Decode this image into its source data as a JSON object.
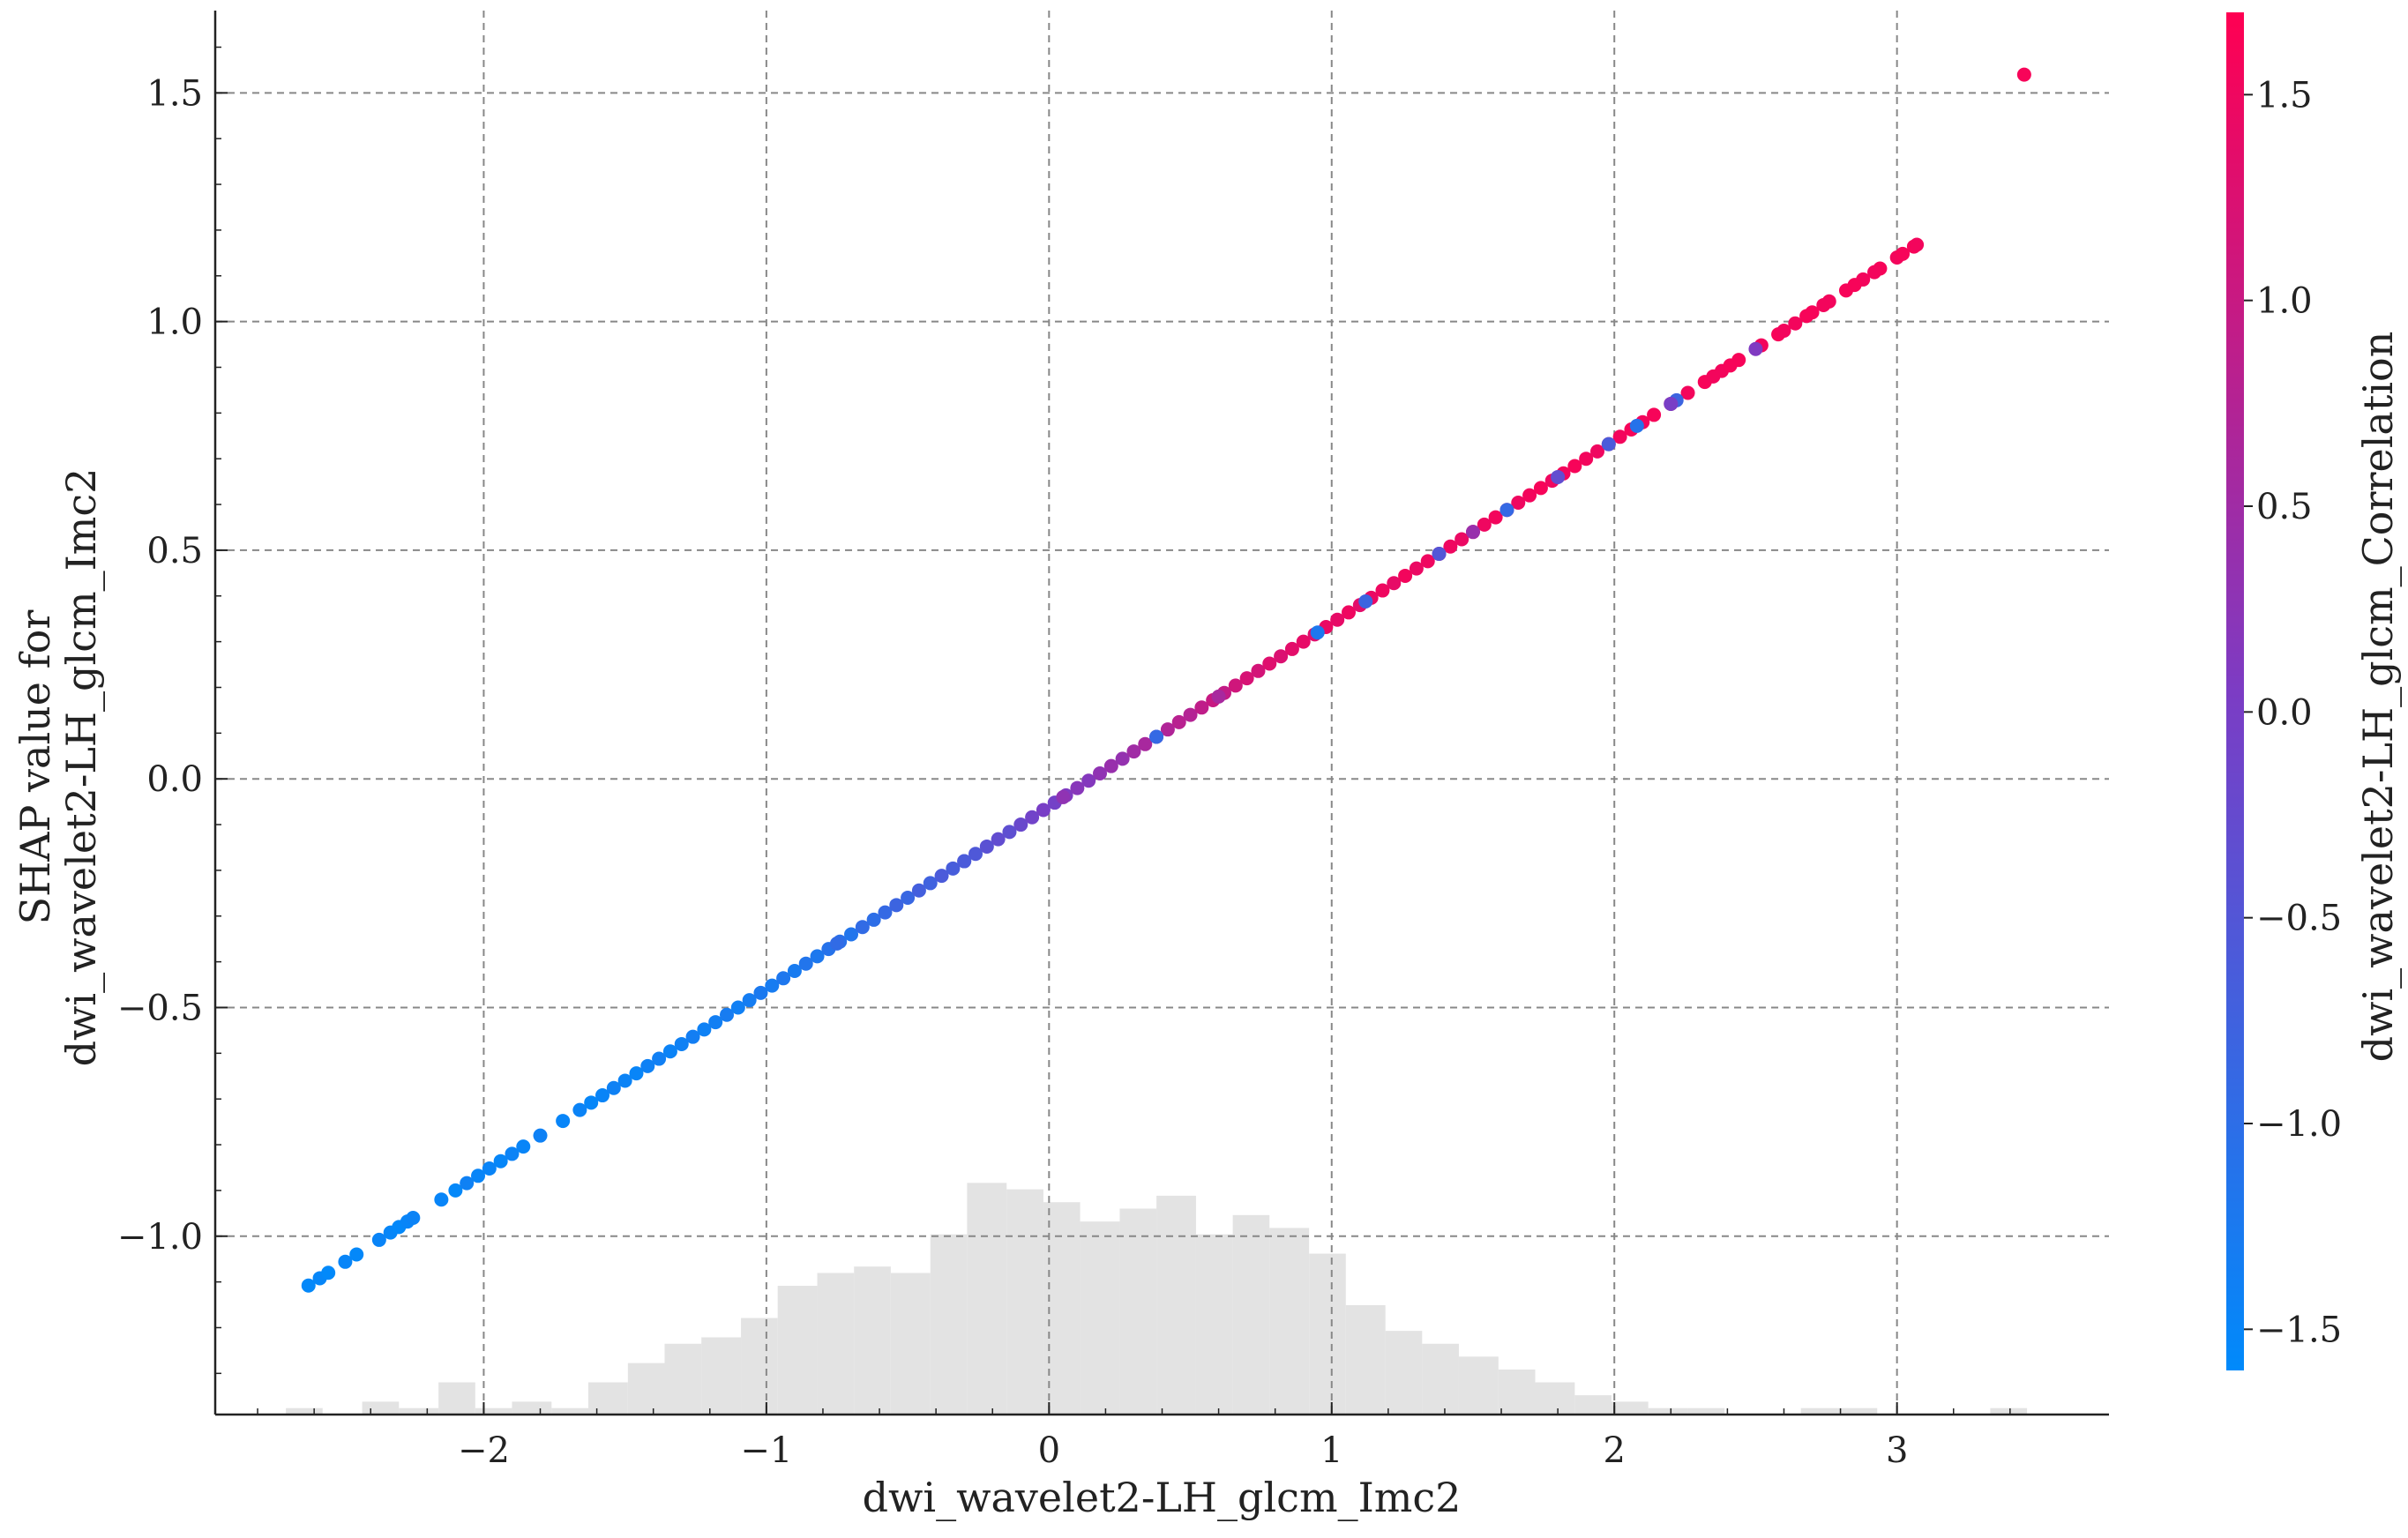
{
  "chart_data": {
    "type": "scatter",
    "title": "",
    "xlabel": "dwi_wavelet2-LH_glcm_Imc2",
    "ylabel_lines": [
      "SHAP value for",
      "dwi_wavelet2-LH_glcm_Imc2"
    ],
    "colorbar_label": "dwi_wavelet2-LH_glcm_Correlation",
    "xlim": [
      -2.95,
      3.75
    ],
    "ylim": [
      -1.39,
      1.68
    ],
    "xticks": [
      -2,
      -1,
      0,
      1,
      2,
      3
    ],
    "xtick_labels": [
      "−2",
      "−1",
      "0",
      "1",
      "2",
      "3"
    ],
    "yticks": [
      -1.0,
      -0.5,
      0.0,
      0.5,
      1.0,
      1.5
    ],
    "ytick_labels": [
      "−1.0",
      "−0.5",
      "0.0",
      "0.5",
      "1.0",
      "1.5"
    ],
    "colorbar_ticks": [
      -1.5,
      -1.0,
      -0.5,
      0.0,
      0.5,
      1.0,
      1.5
    ],
    "colorbar_tick_labels": [
      "−1.5",
      "−1.0",
      "−0.5",
      "0.0",
      "0.5",
      "1.0",
      "1.5"
    ],
    "colorbar_range": [
      -1.6,
      1.7
    ],
    "grid": true,
    "colors": {
      "low": "#008afb",
      "mid": "#7c3cc4",
      "high": "#ff0052",
      "histogram": "#e3e3e3",
      "grid": "#888888",
      "axis": "#222222"
    },
    "trend": {
      "slope": 0.4,
      "intercept": -0.06
    },
    "points": [
      [
        -2.62,
        -1.26,
        -1.55
      ],
      [
        -2.58,
        -1.24,
        -1.52
      ],
      [
        -2.55,
        -1.23,
        -1.58
      ],
      [
        -2.49,
        -1.21,
        -1.5
      ],
      [
        -2.45,
        -1.19,
        -1.55
      ],
      [
        -2.37,
        -1.16,
        -1.48
      ],
      [
        -2.33,
        -1.14,
        -1.52
      ],
      [
        -2.3,
        -1.13,
        -1.56
      ],
      [
        -2.27,
        -1.12,
        -1.5
      ],
      [
        -2.25,
        -1.11,
        -1.45
      ],
      [
        -2.15,
        -1.07,
        -1.5
      ],
      [
        -2.1,
        -1.05,
        -1.55
      ],
      [
        -2.06,
        -1.03,
        -1.4
      ],
      [
        -2.02,
        -1.02,
        -1.5
      ],
      [
        -1.98,
        -1.0,
        -1.48
      ],
      [
        -1.94,
        -0.99,
        -1.52
      ],
      [
        -1.9,
        -0.97,
        -1.45
      ],
      [
        -1.86,
        -0.95,
        -1.5
      ],
      [
        -1.8,
        -0.93,
        -1.42
      ],
      [
        -1.72,
        -0.9,
        -1.5
      ],
      [
        -1.66,
        -0.87,
        -1.45
      ],
      [
        -1.62,
        -0.86,
        -1.52
      ],
      [
        -1.58,
        -0.84,
        -1.48
      ],
      [
        -1.54,
        -0.83,
        -1.4
      ],
      [
        -1.5,
        -0.81,
        -1.45
      ],
      [
        -1.46,
        -0.8,
        -1.5
      ],
      [
        -1.42,
        -0.78,
        -1.42
      ],
      [
        -1.38,
        -0.76,
        -1.38
      ],
      [
        -1.34,
        -0.75,
        -1.46
      ],
      [
        -1.3,
        -0.73,
        -1.4
      ],
      [
        -1.26,
        -0.71,
        -1.35
      ],
      [
        -1.22,
        -0.7,
        -1.42
      ],
      [
        -1.18,
        -0.68,
        -1.36
      ],
      [
        -1.14,
        -0.66,
        -1.3
      ],
      [
        -1.1,
        -0.65,
        -1.38
      ],
      [
        -1.06,
        -0.63,
        -1.32
      ],
      [
        -1.02,
        -0.61,
        -1.25
      ],
      [
        -0.98,
        -0.6,
        -1.3
      ],
      [
        -0.94,
        -0.58,
        -1.2
      ],
      [
        -0.9,
        -0.57,
        -1.28
      ],
      [
        -0.86,
        -0.55,
        -1.15
      ],
      [
        -0.82,
        -0.53,
        -1.22
      ],
      [
        -0.78,
        -0.52,
        -1.1
      ],
      [
        -0.74,
        -0.5,
        -1.05
      ],
      [
        -0.7,
        -0.49,
        -1.15
      ],
      [
        -0.66,
        -0.47,
        -0.95
      ],
      [
        -0.62,
        -0.45,
        -1.0
      ],
      [
        -0.58,
        -0.44,
        -0.9
      ],
      [
        -0.54,
        -0.42,
        -0.8
      ],
      [
        -0.5,
        -0.41,
        -0.85
      ],
      [
        -0.46,
        -0.39,
        -0.7
      ],
      [
        -0.42,
        -0.37,
        -0.75
      ],
      [
        -0.38,
        -0.36,
        -0.6
      ],
      [
        -0.34,
        -0.34,
        -0.65
      ],
      [
        -0.3,
        -0.32,
        -0.5
      ],
      [
        -0.26,
        -0.31,
        -0.55
      ],
      [
        -0.22,
        -0.29,
        -0.4
      ],
      [
        -0.18,
        -0.28,
        -0.3
      ],
      [
        -0.14,
        -0.26,
        -0.35
      ],
      [
        -0.1,
        -0.24,
        -0.2
      ],
      [
        -0.06,
        -0.23,
        -0.1
      ],
      [
        -0.02,
        -0.21,
        0.0
      ],
      [
        0.02,
        -0.2,
        -0.05
      ],
      [
        0.06,
        -0.18,
        0.1
      ],
      [
        0.1,
        -0.16,
        0.2
      ],
      [
        0.14,
        -0.15,
        0.15
      ],
      [
        0.18,
        -0.13,
        0.3
      ],
      [
        0.22,
        -0.11,
        0.4
      ],
      [
        0.26,
        -0.1,
        0.35
      ],
      [
        0.3,
        -0.08,
        0.5
      ],
      [
        0.34,
        -0.07,
        0.6
      ],
      [
        0.38,
        -0.05,
        0.55
      ],
      [
        0.42,
        -0.03,
        0.7
      ],
      [
        0.46,
        -0.02,
        0.8
      ],
      [
        0.5,
        0.0,
        0.75
      ],
      [
        0.54,
        0.02,
        0.9
      ],
      [
        0.58,
        0.03,
        1.0
      ],
      [
        0.62,
        0.05,
        0.95
      ],
      [
        0.66,
        0.06,
        1.1
      ],
      [
        0.7,
        0.08,
        1.2
      ],
      [
        0.74,
        0.1,
        1.15
      ],
      [
        0.78,
        0.11,
        1.3
      ],
      [
        0.82,
        0.13,
        1.25
      ],
      [
        0.86,
        0.14,
        1.35
      ],
      [
        0.9,
        0.16,
        1.4
      ],
      [
        0.94,
        0.18,
        1.3
      ],
      [
        0.98,
        0.19,
        1.45
      ],
      [
        1.02,
        0.21,
        1.4
      ],
      [
        1.06,
        0.22,
        1.5
      ],
      [
        1.1,
        0.24,
        1.35
      ],
      [
        1.14,
        0.26,
        1.45
      ],
      [
        1.18,
        0.27,
        1.5
      ],
      [
        1.22,
        0.29,
        1.4
      ],
      [
        1.26,
        0.31,
        1.55
      ],
      [
        1.3,
        0.32,
        1.45
      ],
      [
        1.34,
        0.34,
        1.5
      ],
      [
        1.38,
        0.35,
        1.55
      ],
      [
        1.42,
        0.37,
        1.5
      ],
      [
        1.46,
        0.39,
        1.45
      ],
      [
        1.5,
        0.4,
        1.55
      ],
      [
        1.54,
        0.42,
        1.5
      ],
      [
        1.58,
        0.43,
        1.55
      ],
      [
        1.62,
        0.45,
        1.6
      ],
      [
        1.66,
        0.47,
        1.5
      ],
      [
        1.7,
        0.48,
        1.55
      ],
      [
        1.74,
        0.5,
        1.6
      ],
      [
        1.78,
        0.51,
        1.5
      ],
      [
        1.82,
        0.53,
        1.55
      ],
      [
        1.86,
        0.55,
        1.6
      ],
      [
        1.9,
        0.56,
        1.55
      ],
      [
        1.94,
        0.58,
        1.5
      ],
      [
        1.98,
        0.59,
        1.6
      ],
      [
        2.02,
        0.61,
        1.55
      ],
      [
        2.06,
        0.63,
        1.6
      ],
      [
        2.1,
        0.64,
        1.55
      ],
      [
        2.14,
        0.66,
        1.6
      ],
      [
        2.2,
        0.68,
        1.5
      ],
      [
        2.26,
        0.71,
        1.55
      ],
      [
        2.32,
        0.73,
        1.6
      ],
      [
        2.38,
        0.76,
        1.55
      ],
      [
        2.44,
        0.78,
        1.6
      ],
      [
        2.52,
        0.81,
        1.55
      ],
      [
        2.58,
        0.83,
        1.6
      ],
      [
        2.64,
        0.86,
        1.55
      ],
      [
        2.7,
        0.88,
        1.6
      ],
      [
        2.76,
        0.9,
        1.55
      ],
      [
        2.82,
        0.93,
        1.6
      ],
      [
        2.88,
        0.95,
        1.55
      ],
      [
        2.94,
        0.98,
        1.6
      ],
      [
        3.0,
        1.0,
        1.55
      ],
      [
        3.06,
        1.02,
        1.6
      ],
      [
        3.45,
        1.54,
        1.6
      ],
      [
        0.38,
        0.08,
        -0.9
      ],
      [
        0.95,
        0.4,
        -1.2
      ],
      [
        1.12,
        0.46,
        -0.8
      ],
      [
        1.38,
        0.59,
        -0.5
      ],
      [
        1.62,
        0.67,
        -0.9
      ],
      [
        1.8,
        0.74,
        -0.3
      ],
      [
        1.98,
        0.81,
        -0.6
      ],
      [
        2.08,
        0.85,
        -1.1
      ],
      [
        2.22,
        0.91,
        -0.8
      ],
      [
        2.2,
        0.97,
        0.0
      ],
      [
        2.5,
        1.1,
        0.1
      ],
      [
        -0.3,
        -0.19,
        -0.6
      ],
      [
        0.05,
        -0.02,
        0.3
      ],
      [
        -0.75,
        -0.34,
        -0.95
      ],
      [
        0.6,
        0.17,
        0.6
      ],
      [
        1.5,
        0.6,
        0.4
      ],
      [
        2.35,
        1.02,
        1.55
      ],
      [
        2.41,
        1.05,
        1.6
      ],
      [
        2.6,
        1.12,
        1.55
      ],
      [
        2.68,
        1.18,
        1.6
      ],
      [
        2.74,
        1.21,
        1.55
      ],
      [
        2.85,
        1.26,
        1.6
      ],
      [
        2.92,
        1.29,
        1.55
      ],
      [
        3.02,
        1.32,
        1.6
      ],
      [
        3.07,
        1.35,
        1.55
      ]
    ],
    "histogram": {
      "bin_edges": [
        -2.7,
        -2.57,
        -2.43,
        -2.3,
        -2.16,
        -2.03,
        -1.9,
        -1.76,
        -1.63,
        -1.49,
        -1.36,
        -1.23,
        -1.09,
        -0.96,
        -0.82,
        -0.69,
        -0.56,
        -0.42,
        -0.29,
        -0.15,
        -0.02,
        0.11,
        0.25,
        0.38,
        0.52,
        0.65,
        0.78,
        0.92,
        1.05,
        1.19,
        1.32,
        1.45,
        1.59,
        1.72,
        1.86,
        1.99,
        2.12,
        2.26,
        2.39,
        2.53,
        2.66,
        2.79,
        2.93,
        3.06,
        3.2,
        3.33,
        3.46
      ],
      "counts": [
        1,
        0,
        2,
        1,
        5,
        1,
        2,
        1,
        5,
        8,
        11,
        12,
        15,
        20,
        22,
        23,
        22,
        28,
        36,
        35,
        33,
        30,
        32,
        34,
        28,
        31,
        29,
        25,
        17,
        13,
        11,
        9,
        7,
        5,
        3,
        2,
        1,
        1,
        0,
        0,
        1,
        1,
        0,
        0,
        0,
        1
      ]
    }
  }
}
